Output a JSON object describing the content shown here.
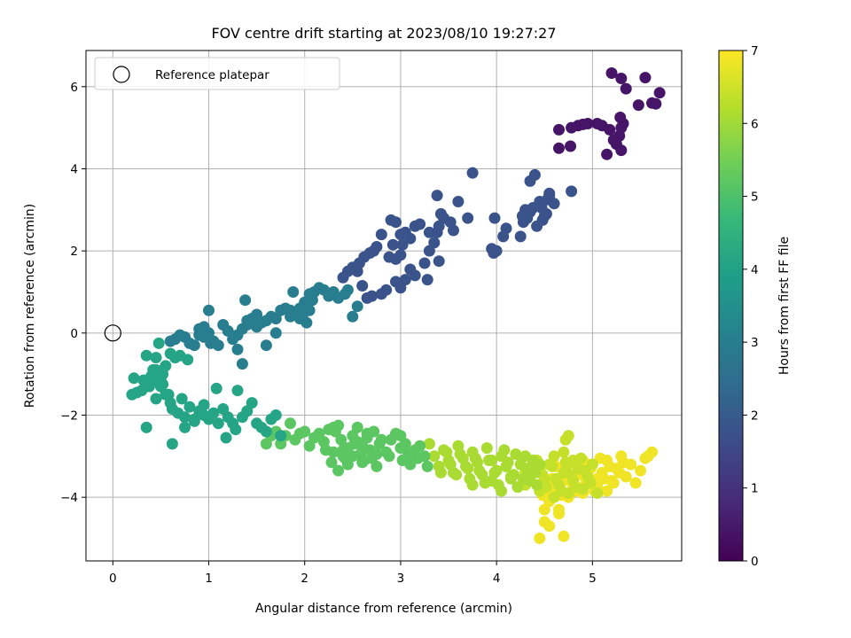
{
  "chart_data": {
    "type": "scatter",
    "title": "FOV centre drift starting at 2023/08/10 19:27:27",
    "xlabel": "Angular distance from reference (arcmin)",
    "ylabel": "Rotation from reference (arcmin)",
    "xlim": [
      -0.28,
      5.93
    ],
    "ylim": [
      -5.55,
      6.88
    ],
    "xticks": [
      0,
      1,
      2,
      3,
      4,
      5
    ],
    "yticks": [
      -4,
      -2,
      0,
      2,
      4,
      6
    ],
    "xtick_labels": [
      "0",
      "1",
      "2",
      "3",
      "4",
      "5"
    ],
    "ytick_labels": [
      "−4",
      "−2",
      "0",
      "2",
      "4",
      "6"
    ],
    "grid": true,
    "legend": {
      "placement": "top-left",
      "entries": [
        {
          "label": "Reference platepar",
          "marker": "open-circle",
          "color": "#000000"
        }
      ]
    },
    "reference_point": {
      "x": 0,
      "y": 0
    },
    "colorbar": {
      "label": "Hours from first FF file",
      "range": [
        0,
        7
      ],
      "ticks": [
        0,
        1,
        2,
        3,
        4,
        5,
        6,
        7
      ],
      "tick_labels": [
        "0",
        "1",
        "2",
        "3",
        "4",
        "5",
        "6",
        "7"
      ],
      "colormap": "viridis",
      "colormap_stops": [
        "#440154",
        "#482878",
        "#3e4989",
        "#31688e",
        "#26828e",
        "#1f9e89",
        "#35b779",
        "#6ece58",
        "#b5de2b",
        "#fde725"
      ]
    },
    "series": [
      {
        "x": [
          5.3,
          5.2,
          5.55,
          5.62,
          5.35,
          5.7,
          5.48,
          5.66,
          5.32,
          5.3,
          5.28,
          5.22,
          5.05,
          4.95,
          4.9,
          4.85,
          4.78,
          4.65,
          4.65,
          4.77,
          5.15,
          5.25,
          5.3,
          5.1,
          5.18,
          5.29
        ],
        "y": [
          6.2,
          6.33,
          6.22,
          5.6,
          5.95,
          5.85,
          5.55,
          5.58,
          5.1,
          5.0,
          4.8,
          4.7,
          5.1,
          5.1,
          5.08,
          5.05,
          5.0,
          4.95,
          4.5,
          4.55,
          4.35,
          4.6,
          4.45,
          5.05,
          4.95,
          5.25
        ],
        "color_value": 0.4
      },
      {
        "x": [
          4.78,
          4.55,
          4.45,
          4.47,
          4.4,
          4.35,
          4.3,
          4.32,
          4.27,
          4.45,
          4.5,
          4.6,
          4.55,
          4.53,
          4.52,
          4.48,
          4.42,
          4.38,
          4.35,
          4.28,
          4.25,
          4.1,
          4.07,
          4.0,
          3.97,
          3.95,
          3.98,
          3.75,
          3.7,
          3.6,
          3.52,
          3.55,
          3.45,
          3.4,
          3.38,
          3.3,
          3.2,
          3.15,
          3.38,
          3.42,
          3.35,
          3.3,
          3.25,
          3.05,
          3.1,
          3.02,
          3.0,
          2.95,
          2.92,
          2.88,
          2.8,
          2.75,
          2.72,
          2.68,
          2.62,
          2.57,
          2.55,
          2.5,
          2.45,
          2.4,
          3.28,
          3.4,
          3.1,
          3.15,
          3.05,
          2.95,
          3.0,
          2.85,
          2.8,
          2.7,
          2.65,
          2.6,
          2.95,
          2.9,
          3.0
        ],
        "y": [
          3.45,
          3.35,
          3.2,
          3.05,
          3.85,
          3.7,
          3.0,
          2.8,
          2.85,
          3.1,
          2.85,
          3.15,
          3.4,
          3.25,
          2.9,
          2.75,
          2.6,
          3.05,
          2.95,
          2.7,
          2.35,
          2.55,
          2.35,
          2.0,
          1.95,
          2.05,
          2.8,
          3.9,
          2.8,
          3.2,
          2.7,
          2.5,
          2.8,
          2.6,
          2.45,
          2.45,
          2.65,
          2.6,
          3.35,
          2.9,
          2.2,
          2.0,
          1.7,
          2.45,
          2.3,
          2.15,
          1.9,
          1.8,
          2.15,
          1.85,
          2.4,
          2.1,
          2.0,
          1.95,
          1.85,
          1.7,
          1.5,
          1.6,
          1.5,
          1.35,
          1.3,
          1.75,
          1.55,
          1.4,
          1.3,
          1.25,
          1.1,
          1.05,
          0.95,
          0.9,
          0.85,
          1.15,
          2.7,
          2.75,
          2.4
        ],
        "color_value": 1.8
      },
      {
        "x": [
          2.55,
          2.5,
          2.45,
          2.42,
          2.35,
          2.3,
          2.25,
          2.2,
          2.15,
          2.1,
          2.05,
          2.0,
          1.95,
          1.9,
          1.85,
          1.8,
          1.75,
          1.7,
          1.65,
          1.6,
          1.55,
          1.5,
          1.45,
          1.4,
          1.38,
          1.35,
          1.3,
          1.25,
          1.2,
          1.15,
          1.1,
          1.05,
          1.02,
          1.0,
          0.95,
          0.9,
          0.85,
          0.8,
          0.75,
          0.7,
          0.65,
          0.6,
          2.05,
          2.0,
          1.98,
          1.95,
          1.92,
          1.88,
          1.5,
          1.45,
          1.4,
          1.35,
          1.3,
          1.7,
          1.6,
          1.0,
          0.95,
          0.9,
          2.02,
          2.08,
          1.85
        ],
        "y": [
          0.65,
          0.4,
          1.05,
          0.95,
          0.85,
          1.0,
          0.9,
          1.05,
          1.1,
          1.0,
          0.95,
          0.75,
          0.6,
          0.45,
          0.55,
          0.6,
          0.55,
          0.35,
          0.4,
          0.3,
          0.25,
          0.45,
          0.35,
          0.2,
          0.8,
          0.1,
          -0.05,
          -0.15,
          0.05,
          0.2,
          -0.3,
          -0.2,
          -0.25,
          0.0,
          -0.1,
          -0.05,
          -0.3,
          -0.25,
          -0.1,
          -0.05,
          -0.15,
          -0.2,
          0.55,
          0.7,
          0.45,
          0.35,
          0.5,
          1.0,
          0.15,
          0.35,
          0.3,
          -0.75,
          -0.4,
          0.0,
          -0.3,
          0.55,
          0.15,
          0.1,
          0.25,
          0.8,
          0.4
        ],
        "color_value": 3.0
      },
      {
        "x": [
          0.78,
          0.7,
          0.65,
          0.6,
          0.55,
          0.52,
          0.5,
          0.48,
          0.45,
          0.42,
          0.4,
          0.38,
          0.35,
          0.32,
          0.3,
          0.25,
          0.22,
          0.2,
          0.45,
          0.5,
          0.55,
          0.6,
          0.62,
          0.68,
          0.72,
          0.75,
          0.8,
          0.85,
          0.9,
          0.95,
          1.0,
          1.05,
          1.1,
          1.15,
          1.2,
          1.25,
          1.3,
          1.35,
          1.4,
          1.45,
          1.5,
          1.55,
          1.6,
          1.65,
          1.7,
          1.75,
          0.35,
          0.62,
          0.75,
          0.4,
          0.45,
          1.08,
          1.18,
          1.28,
          0.58,
          0.52,
          0.85,
          0.95
        ],
        "y": [
          -0.65,
          -0.55,
          -0.6,
          -0.5,
          -0.8,
          -1.0,
          -1.1,
          -0.25,
          -0.6,
          -0.9,
          -1.2,
          -1.3,
          -0.55,
          -1.15,
          -1.4,
          -1.45,
          -1.1,
          -1.5,
          -1.6,
          -1.3,
          -1.5,
          -1.7,
          -1.85,
          -1.95,
          -1.6,
          -2.05,
          -1.8,
          -2.1,
          -1.9,
          -2.0,
          -2.1,
          -1.95,
          -2.2,
          -1.85,
          -2.05,
          -2.2,
          -1.4,
          -2.05,
          -1.9,
          -1.7,
          -2.2,
          -2.3,
          -2.4,
          -2.1,
          -2.0,
          -2.5,
          -2.3,
          -2.7,
          -2.3,
          -1.05,
          -0.9,
          -1.35,
          -2.55,
          -2.35,
          -1.5,
          -1.25,
          -2.15,
          -1.75
        ],
        "color_value": 4.1
      },
      {
        "x": [
          1.6,
          1.65,
          1.7,
          1.75,
          1.8,
          1.85,
          1.9,
          1.95,
          2.0,
          2.05,
          2.1,
          2.15,
          2.2,
          2.25,
          2.3,
          2.32,
          2.35,
          2.38,
          2.4,
          2.42,
          2.45,
          2.48,
          2.5,
          2.52,
          2.55,
          2.58,
          2.6,
          2.62,
          2.65,
          2.68,
          2.7,
          2.72,
          2.75,
          2.78,
          2.8,
          2.85,
          2.88,
          2.9,
          2.95,
          3.0,
          3.02,
          3.05,
          3.08,
          3.1,
          3.15,
          3.18,
          3.2,
          3.25,
          3.28,
          2.22,
          2.28,
          2.35,
          2.4,
          2.45,
          2.5,
          2.55,
          2.6,
          2.3,
          2.65,
          2.75,
          3.0
        ],
        "y": [
          -2.7,
          -2.5,
          -2.4,
          -2.7,
          -2.5,
          -2.2,
          -2.6,
          -2.45,
          -2.4,
          -2.75,
          -2.55,
          -2.45,
          -2.65,
          -2.35,
          -2.9,
          -2.4,
          -2.25,
          -2.6,
          -2.85,
          -3.05,
          -2.8,
          -3.0,
          -2.5,
          -2.7,
          -2.3,
          -2.95,
          -2.75,
          -3.1,
          -2.55,
          -2.85,
          -3.05,
          -2.4,
          -2.95,
          -2.7,
          -2.6,
          -2.9,
          -3.0,
          -2.6,
          -2.45,
          -2.8,
          -3.1,
          -2.7,
          -2.95,
          -3.2,
          -2.85,
          -3.05,
          -2.75,
          -3.0,
          -3.25,
          -2.85,
          -3.15,
          -3.35,
          -3.0,
          -3.2,
          -3.0,
          -2.65,
          -3.15,
          -2.3,
          -2.45,
          -3.25,
          -2.5
        ],
        "color_value": 5.2
      },
      {
        "x": [
          3.3,
          3.35,
          3.4,
          3.45,
          3.5,
          3.55,
          3.6,
          3.65,
          3.7,
          3.75,
          3.8,
          3.85,
          3.9,
          3.95,
          4.0,
          4.05,
          4.1,
          4.15,
          4.2,
          4.25,
          4.28,
          4.3,
          4.32,
          4.35,
          4.38,
          4.4,
          4.42,
          4.45,
          3.42,
          3.48,
          3.52,
          3.58,
          3.62,
          3.68,
          3.72,
          3.78,
          3.82,
          3.88,
          3.92,
          3.98,
          4.02,
          4.08,
          4.12,
          4.18,
          4.22,
          3.75,
          3.95,
          4.05,
          4.15
        ],
        "y": [
          -2.7,
          -3.0,
          -3.25,
          -2.85,
          -3.1,
          -3.4,
          -2.75,
          -3.05,
          -3.3,
          -2.9,
          -3.15,
          -3.45,
          -2.8,
          -3.1,
          -3.35,
          -3.0,
          -3.25,
          -3.5,
          -2.95,
          -3.2,
          -3.55,
          -3.0,
          -3.3,
          -3.6,
          -3.1,
          -3.4,
          -3.7,
          -3.2,
          -3.4,
          -2.9,
          -3.2,
          -3.45,
          -2.95,
          -3.25,
          -3.55,
          -3.05,
          -3.35,
          -3.65,
          -3.1,
          -3.4,
          -3.7,
          -2.85,
          -3.15,
          -3.45,
          -3.75,
          -3.7,
          -3.6,
          -3.85,
          -3.55
        ],
        "color_value": 6.1
      },
      {
        "x": [
          4.3,
          4.35,
          4.4,
          4.45,
          4.5,
          4.55,
          4.6,
          4.65,
          4.7,
          4.75,
          4.8,
          4.85,
          4.9,
          4.95,
          5.0,
          5.05,
          4.42,
          4.48,
          4.52,
          4.58,
          4.62,
          4.68,
          4.72,
          4.78,
          4.82,
          4.88,
          4.92,
          4.98,
          4.6,
          4.75,
          4.8,
          4.7,
          4.72,
          4.74,
          4.3,
          4.45
        ],
        "y": [
          -3.4,
          -3.6,
          -3.3,
          -3.85,
          -3.55,
          -3.2,
          -4.0,
          -3.7,
          -3.4,
          -3.9,
          -3.6,
          -3.3,
          -3.8,
          -3.5,
          -3.2,
          -3.9,
          -3.1,
          -3.45,
          -3.75,
          -3.25,
          -3.55,
          -3.85,
          -3.15,
          -3.45,
          -3.75,
          -3.05,
          -3.35,
          -3.65,
          -3.0,
          -2.5,
          -3.1,
          -2.9,
          -2.6,
          -3.2,
          -3.7,
          -3.3
        ],
        "color_value": 6.4
      },
      {
        "x": [
          4.5,
          4.55,
          4.6,
          4.65,
          4.7,
          4.75,
          4.8,
          4.85,
          4.9,
          4.95,
          5.0,
          5.05,
          5.1,
          5.15,
          5.2,
          5.25,
          5.3,
          5.35,
          5.4,
          5.45,
          5.5,
          5.55,
          5.58,
          5.62,
          4.52,
          4.58,
          4.62,
          4.68,
          4.72,
          4.78,
          4.82,
          4.88,
          4.92,
          4.98,
          5.02,
          5.08,
          5.12,
          5.18,
          5.22,
          5.28,
          5.32,
          4.7,
          4.55,
          4.65,
          5.05,
          5.15,
          4.45,
          4.5,
          4.48,
          4.95,
          4.9,
          4.55
        ],
        "y": [
          -4.3,
          -4.1,
          -3.8,
          -4.4,
          -3.6,
          -4.0,
          -3.7,
          -3.4,
          -3.9,
          -3.55,
          -3.2,
          -3.75,
          -3.4,
          -3.1,
          -3.6,
          -3.3,
          -3.0,
          -3.5,
          -3.2,
          -3.65,
          -3.35,
          -3.05,
          -3.0,
          -2.9,
          -3.9,
          -3.55,
          -3.25,
          -3.95,
          -3.5,
          -3.15,
          -3.85,
          -3.45,
          -3.7,
          -3.3,
          -3.85,
          -3.05,
          -3.55,
          -3.25,
          -3.65,
          -3.4,
          -3.15,
          -4.95,
          -4.7,
          -4.3,
          -3.55,
          -3.85,
          -5.0,
          -4.6,
          -3.95,
          -3.2,
          -3.1,
          -3.65
        ],
        "color_value": 6.85
      }
    ]
  }
}
